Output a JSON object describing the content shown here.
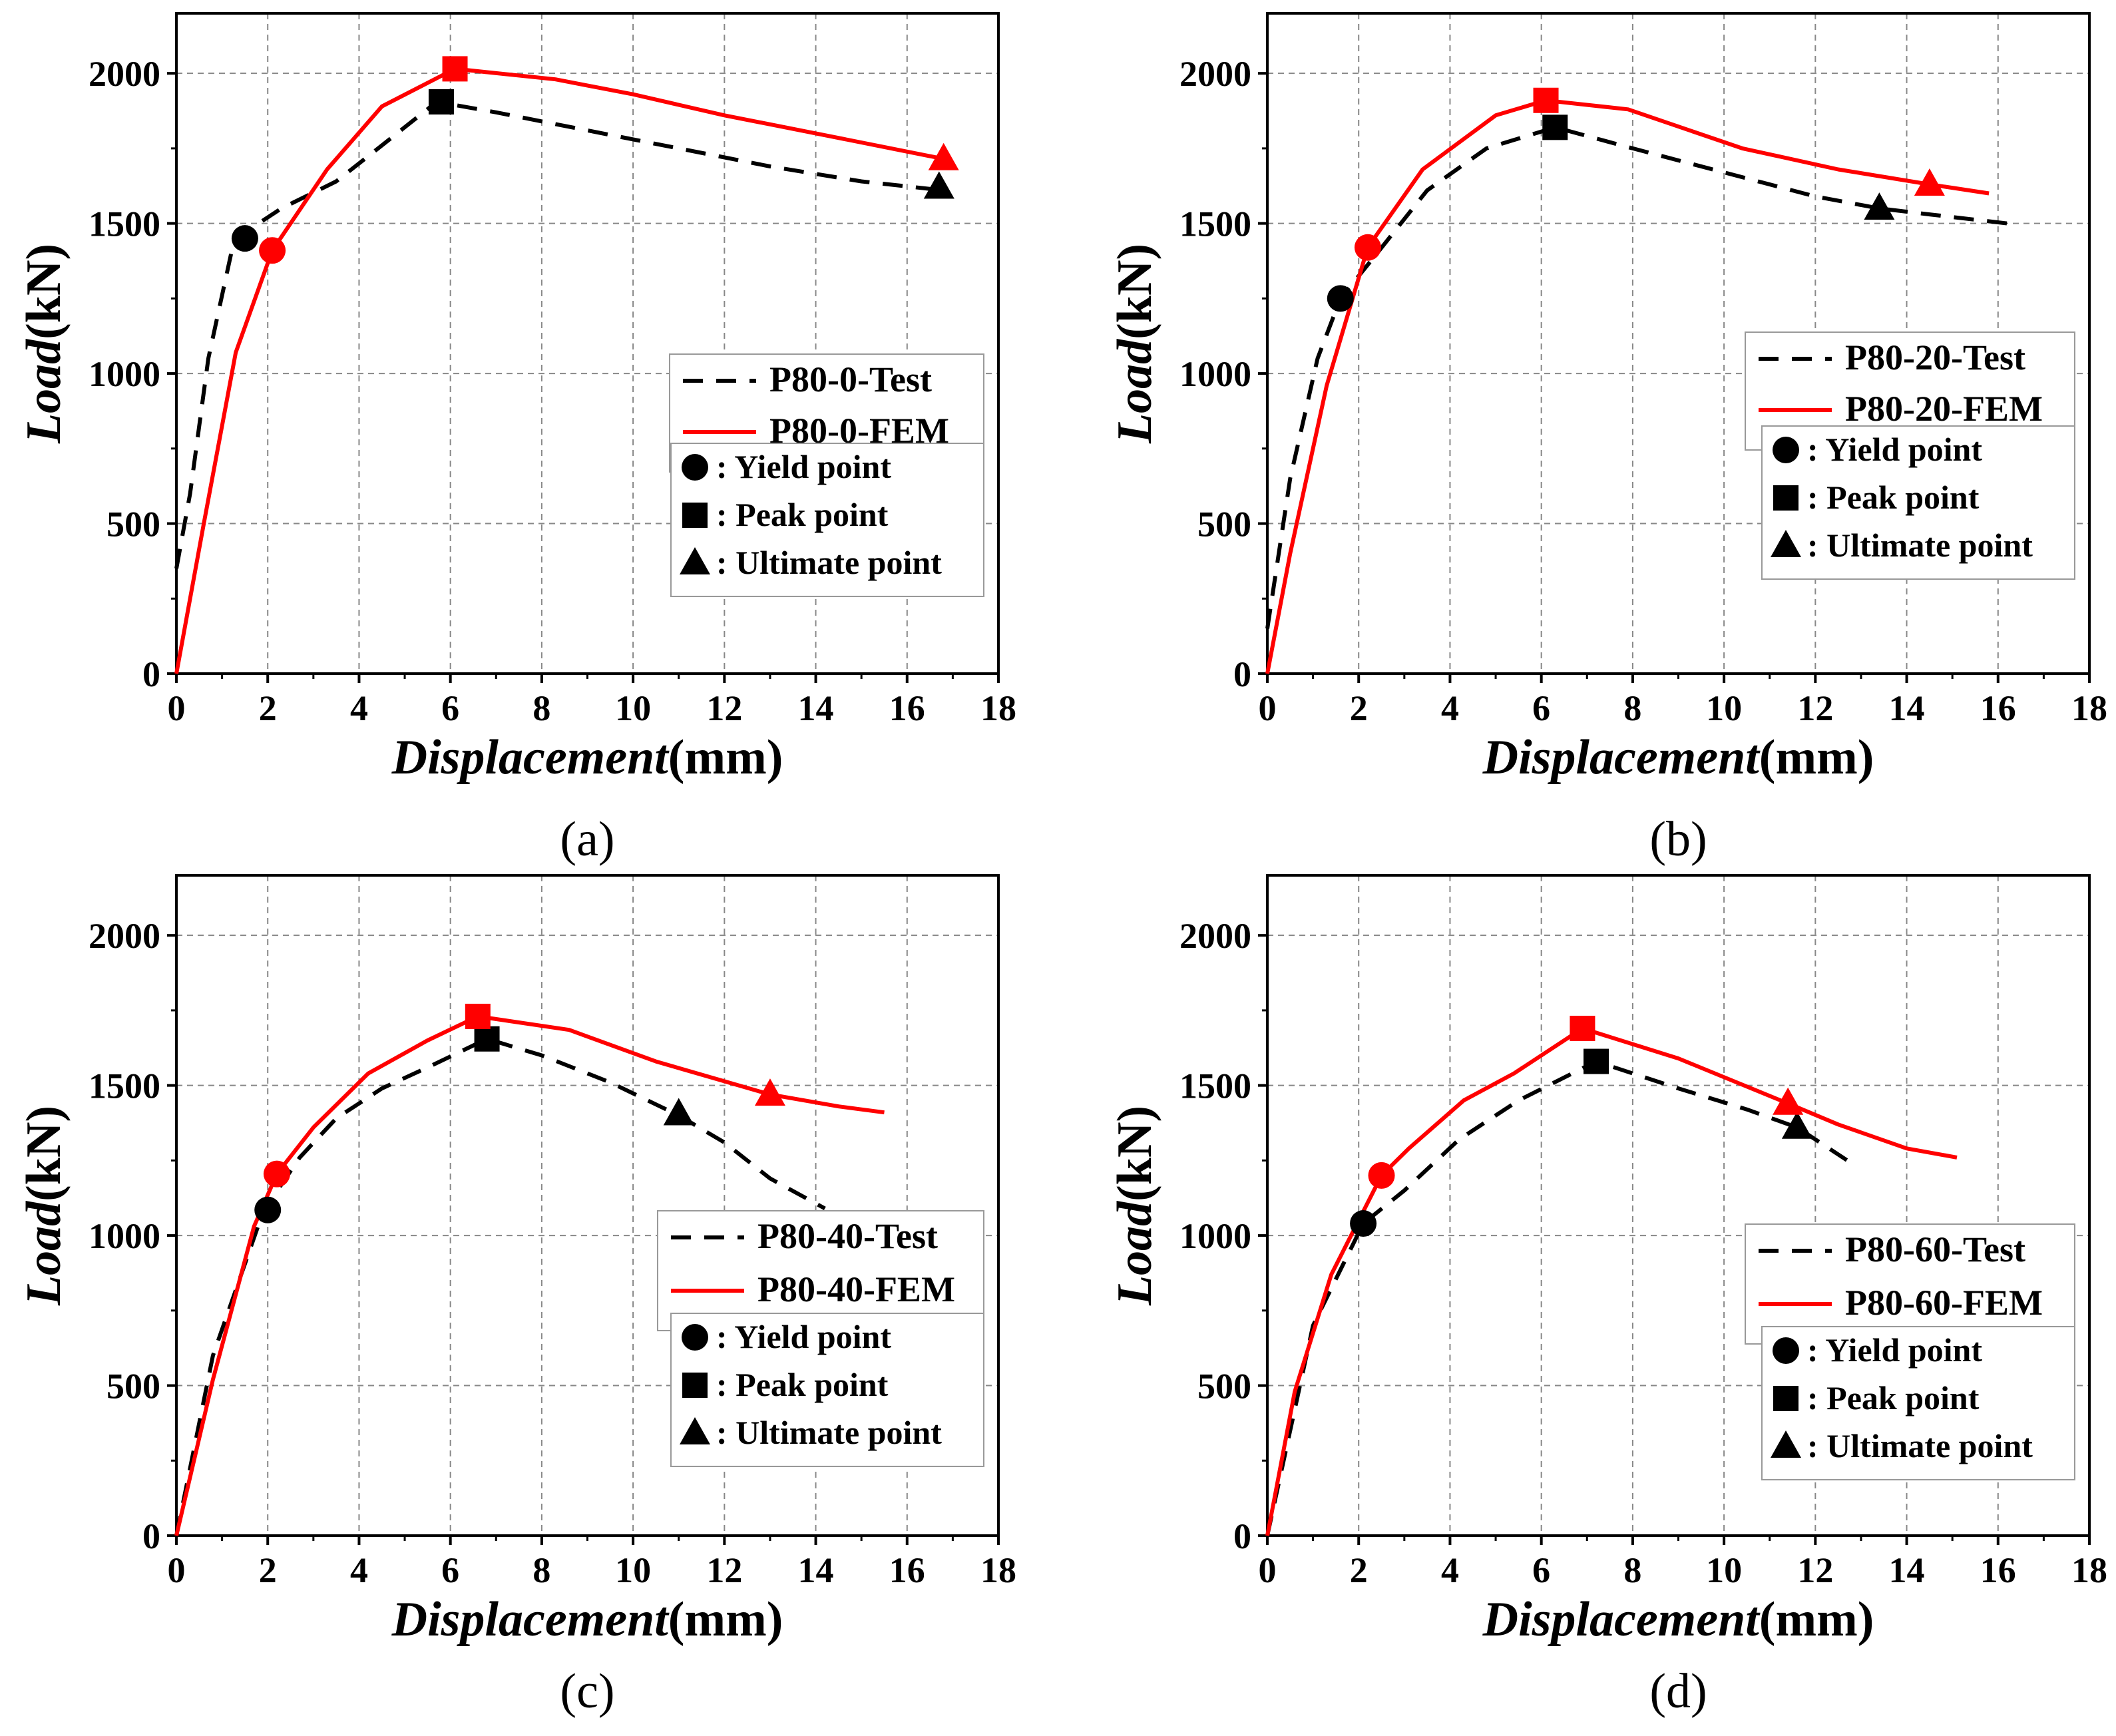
{
  "chart_data": [
    {
      "type": "line",
      "panel": "(a)",
      "caption": "(a)",
      "xlabel_italic": "Displacement",
      "xlabel_unit": "(mm)",
      "ylabel_italic": "Load",
      "ylabel_unit": "(kN)",
      "xlim": [
        0,
        18
      ],
      "ylim": [
        0,
        2200
      ],
      "xticks": [
        0,
        2,
        4,
        6,
        8,
        10,
        12,
        14,
        16,
        18
      ],
      "yticks": [
        0,
        500,
        1000,
        1500,
        2000
      ],
      "grid": true,
      "legend_position": "right-middle",
      "series": [
        {
          "name": "P80-0-Test",
          "style": "dashed",
          "color": "#000000",
          "x": [
            0,
            0.3,
            0.7,
            1.2,
            1.5,
            2.3,
            3.5,
            4.5,
            5.7,
            7,
            9,
            11,
            13,
            15,
            16.8
          ],
          "y": [
            350,
            600,
            1050,
            1400,
            1470,
            1550,
            1640,
            1760,
            1905,
            1870,
            1810,
            1750,
            1690,
            1640,
            1610
          ],
          "yield": {
            "x": 1.5,
            "y": 1450
          },
          "peak": {
            "x": 5.8,
            "y": 1905
          },
          "ultimate": {
            "x": 16.7,
            "y": 1620
          }
        },
        {
          "name": "P80-0-FEM",
          "style": "solid",
          "color": "#ff0000",
          "x": [
            0,
            0.6,
            1.3,
            2.1,
            3.3,
            4.5,
            6.1,
            8.3,
            10,
            12,
            14,
            16.8
          ],
          "y": [
            0,
            500,
            1070,
            1410,
            1680,
            1890,
            2015,
            1980,
            1930,
            1860,
            1800,
            1715
          ],
          "yield": {
            "x": 2.1,
            "y": 1410
          },
          "peak": {
            "x": 6.1,
            "y": 2015
          },
          "ultimate": {
            "x": 16.8,
            "y": 1715
          }
        }
      ],
      "marker_legend": [
        ": Yield point",
        ": Peak point",
        ": Ultimate point"
      ]
    },
    {
      "type": "line",
      "panel": "(b)",
      "caption": "(b)",
      "xlabel_italic": "Displacement",
      "xlabel_unit": "(mm)",
      "ylabel_italic": "Load",
      "ylabel_unit": "(kN)",
      "xlim": [
        0,
        18
      ],
      "ylim": [
        0,
        2200
      ],
      "xticks": [
        0,
        2,
        4,
        6,
        8,
        10,
        12,
        14,
        16,
        18
      ],
      "yticks": [
        0,
        500,
        1000,
        1500,
        2000
      ],
      "grid": true,
      "legend_position": "right-middle",
      "series": [
        {
          "name": "P80-20-Test",
          "style": "dashed",
          "color": "#000000",
          "x": [
            0,
            0.5,
            1.1,
            1.6,
            2.4,
            3.5,
            4.8,
            6.3,
            8,
            10,
            12,
            13.4,
            14.5,
            16.2
          ],
          "y": [
            150,
            650,
            1050,
            1250,
            1400,
            1610,
            1750,
            1820,
            1750,
            1670,
            1590,
            1550,
            1530,
            1500
          ],
          "yield": {
            "x": 1.6,
            "y": 1250
          },
          "peak": {
            "x": 6.3,
            "y": 1820
          },
          "ultimate": {
            "x": 13.4,
            "y": 1550
          }
        },
        {
          "name": "P80-20-FEM",
          "style": "solid",
          "color": "#ff0000",
          "x": [
            0,
            0.5,
            1.3,
            2.2,
            3.4,
            5,
            6.1,
            7.9,
            10.4,
            12.5,
            14.5,
            15.8
          ],
          "y": [
            0,
            400,
            960,
            1420,
            1680,
            1860,
            1910,
            1880,
            1750,
            1680,
            1630,
            1600
          ],
          "yield": {
            "x": 2.2,
            "y": 1420
          },
          "peak": {
            "x": 6.1,
            "y": 1910
          },
          "ultimate": {
            "x": 14.5,
            "y": 1630
          }
        }
      ],
      "marker_legend": [
        ": Yield point",
        ": Peak point",
        ": Ultimate point"
      ]
    },
    {
      "type": "line",
      "panel": "(c)",
      "caption": "(c)",
      "xlabel_italic": "Displacement",
      "xlabel_unit": "(mm)",
      "ylabel_italic": "Load",
      "ylabel_unit": "(kN)",
      "xlim": [
        0,
        18
      ],
      "ylim": [
        0,
        2200
      ],
      "xticks": [
        0,
        2,
        4,
        6,
        8,
        10,
        12,
        14,
        16,
        18
      ],
      "yticks": [
        0,
        500,
        1000,
        1500,
        2000
      ],
      "grid": true,
      "legend_position": "right-middle",
      "series": [
        {
          "name": "P80-40-Test",
          "style": "dashed",
          "color": "#000000",
          "x": [
            0,
            0.8,
            1.9,
            2.7,
            3.5,
            4.5,
            5.5,
            6.8,
            8,
            9.5,
            11,
            12,
            13,
            14.2
          ],
          "y": [
            0,
            600,
            1080,
            1260,
            1390,
            1490,
            1560,
            1655,
            1600,
            1510,
            1400,
            1310,
            1190,
            1090
          ],
          "yield": {
            "x": 2,
            "y": 1085
          },
          "peak": {
            "x": 6.8,
            "y": 1655
          },
          "ultimate": {
            "x": 11,
            "y": 1405
          }
        },
        {
          "name": "P80-40-FEM",
          "style": "solid",
          "color": "#ff0000",
          "x": [
            0,
            0.8,
            1.7,
            2.2,
            3,
            4.2,
            5.5,
            6.6,
            8.6,
            10.5,
            13,
            14.5,
            15.5
          ],
          "y": [
            0,
            520,
            1030,
            1205,
            1360,
            1540,
            1650,
            1730,
            1685,
            1580,
            1470,
            1430,
            1410
          ],
          "yield": {
            "x": 2.2,
            "y": 1205
          },
          "peak": {
            "x": 6.6,
            "y": 1730
          },
          "ultimate": {
            "x": 13,
            "y": 1470
          }
        }
      ],
      "marker_legend": [
        ": Yield point",
        ": Peak point",
        ": Ultimate point"
      ]
    },
    {
      "type": "line",
      "panel": "(d)",
      "caption": "(d)",
      "xlabel_italic": "Displacement",
      "xlabel_unit": "(mm)",
      "ylabel_italic": "Load",
      "ylabel_unit": "(kN)",
      "xlim": [
        0,
        18
      ],
      "ylim": [
        0,
        2200
      ],
      "xticks": [
        0,
        2,
        4,
        6,
        8,
        10,
        12,
        14,
        16,
        18
      ],
      "yticks": [
        0,
        500,
        1000,
        1500,
        2000
      ],
      "grid": true,
      "legend_position": "right-middle",
      "series": [
        {
          "name": "P80-60-Test",
          "style": "dashed",
          "color": "#000000",
          "x": [
            0,
            1,
            2.1,
            3,
            4.2,
            5.5,
            7.2,
            9,
            10.5,
            11.6,
            12.9
          ],
          "y": [
            0,
            700,
            1040,
            1150,
            1320,
            1450,
            1580,
            1490,
            1420,
            1360,
            1230
          ],
          "yield": {
            "x": 2.1,
            "y": 1040
          },
          "peak": {
            "x": 7.2,
            "y": 1580
          },
          "ultimate": {
            "x": 11.6,
            "y": 1360
          }
        },
        {
          "name": "P80-60-FEM",
          "style": "solid",
          "color": "#ff0000",
          "x": [
            0,
            0.6,
            1.4,
            2.5,
            3.1,
            4.3,
            5.4,
            6.9,
            9,
            11.4,
            12.5,
            14,
            15.1
          ],
          "y": [
            0,
            480,
            870,
            1200,
            1290,
            1450,
            1540,
            1690,
            1590,
            1440,
            1370,
            1290,
            1260
          ],
          "yield": {
            "x": 2.5,
            "y": 1200
          },
          "peak": {
            "x": 6.9,
            "y": 1690
          },
          "ultimate": {
            "x": 11.4,
            "y": 1440
          }
        }
      ],
      "marker_legend": [
        ": Yield point",
        ": Peak point",
        ": Ultimate point"
      ]
    }
  ]
}
